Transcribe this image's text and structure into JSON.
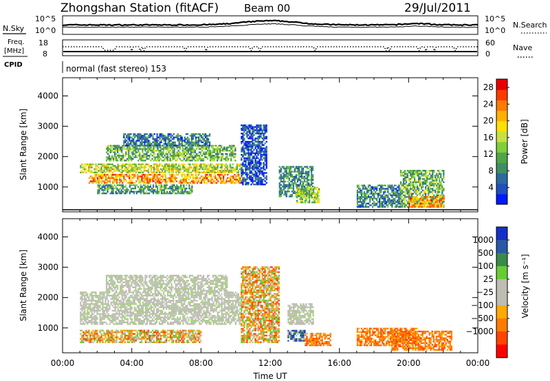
{
  "header": {
    "station": "Zhongshan Station (fitACF)",
    "beam": "Beam 00",
    "date": "29/Jul/2011"
  },
  "noise_panel": {
    "left_label": "N.Sky",
    "right_label": "N.Search",
    "left_ticks": [
      "10^5",
      "10^0"
    ],
    "right_ticks": [
      "10^5",
      "10^0"
    ]
  },
  "freq_panel": {
    "left_label_1": "Freq.",
    "left_label_2": "[MHz]",
    "right_label": "Nave",
    "left_ticks": [
      "18",
      "8"
    ],
    "right_ticks": [
      "60",
      "0"
    ],
    "cpid_label": "CPID",
    "cpid_text": "normal (fast stereo) 153"
  },
  "chart_data": [
    {
      "type": "heatmap",
      "name": "power",
      "ylabel": "Slant Range [km]",
      "xlabel": "",
      "xlim": [
        0,
        24
      ],
      "ylim": [
        180,
        4600
      ],
      "y_ticks": [
        1000,
        2000,
        3000,
        4000
      ],
      "colorbar": {
        "label": "Power [dB]",
        "ticks": [
          "4",
          "8",
          "12",
          "16",
          "20",
          "24",
          "28"
        ],
        "tick_values": [
          4,
          8,
          12,
          16,
          20,
          24,
          28
        ],
        "range": [
          0,
          30
        ],
        "colors": [
          "#0018ff",
          "#1f4fbf",
          "#2b6aa0",
          "#3f8f63",
          "#52a44a",
          "#7fcf3a",
          "#c8e040",
          "#ffe000",
          "#ffb000",
          "#ff7a00",
          "#ff3a00",
          "#e80000"
        ]
      },
      "regions": [
        {
          "t": [
            1.5,
            10.3
          ],
          "r": [
            1050,
            1350
          ],
          "v": 22
        },
        {
          "t": [
            1.0,
            10.3
          ],
          "r": [
            1400,
            1700
          ],
          "v": 16
        },
        {
          "t": [
            2.5,
            10.0
          ],
          "r": [
            1800,
            2300
          ],
          "v": 12
        },
        {
          "t": [
            3.5,
            8.5
          ],
          "r": [
            2300,
            2700
          ],
          "v": 7
        },
        {
          "t": [
            2.0,
            7.5
          ],
          "r": [
            700,
            1000
          ],
          "v": 10
        },
        {
          "t": [
            12.5,
            14.5
          ],
          "r": [
            600,
            1600
          ],
          "v": 9
        },
        {
          "t": [
            13.5,
            14.8
          ],
          "r": [
            400,
            900
          ],
          "v": 14
        },
        {
          "t": [
            17.0,
            19.5
          ],
          "r": [
            250,
            1000
          ],
          "v": 8
        },
        {
          "t": [
            19.5,
            22.0
          ],
          "r": [
            250,
            1500
          ],
          "v": 12
        },
        {
          "t": [
            20.0,
            22.0
          ],
          "r": [
            250,
            600
          ],
          "v": 22
        },
        {
          "t": [
            10.3,
            11.8
          ],
          "r": [
            1000,
            3000
          ],
          "v": 4
        }
      ]
    },
    {
      "type": "heatmap",
      "name": "velocity",
      "ylabel": "Slant Range [km]",
      "xlabel": "Time UT",
      "xlim": [
        0,
        24
      ],
      "ylim": [
        180,
        4600
      ],
      "y_ticks": [
        1000,
        2000,
        3000,
        4000
      ],
      "x_ticks": [
        "00:00",
        "04:00",
        "08:00",
        "12:00",
        "16:00",
        "20:00",
        "00:00"
      ],
      "x_tick_values": [
        0,
        4,
        8,
        12,
        16,
        20,
        24
      ],
      "colorbar": {
        "label": "Velocity [m s⁻¹]",
        "ticks": [
          "1000",
          "500",
          "100",
          "25",
          "−25",
          "−100",
          "−500",
          "−1000"
        ],
        "colors": [
          "#1530c8",
          "#2a58a8",
          "#3a8a4a",
          "#66cc33",
          "#bdbdb2",
          "#bdbdb2",
          "#ffaa00",
          "#ff7a00",
          "#ff4400",
          "#ff0000"
        ]
      },
      "regions": [
        {
          "t": [
            1.0,
            10.3
          ],
          "r": [
            1100,
            2200
          ],
          "v": "ground"
        },
        {
          "t": [
            2.5,
            9.5
          ],
          "r": [
            2200,
            2700
          ],
          "v": "ground"
        },
        {
          "t": [
            1.0,
            8.0
          ],
          "r": [
            500,
            900
          ],
          "v": "neg_small"
        },
        {
          "t": [
            13.0,
            14.5
          ],
          "r": [
            1100,
            1800
          ],
          "v": "ground"
        },
        {
          "t": [
            13.0,
            14.0
          ],
          "r": [
            550,
            900
          ],
          "v": "pos_large"
        },
        {
          "t": [
            14.0,
            15.5
          ],
          "r": [
            400,
            800
          ],
          "v": "neg"
        },
        {
          "t": [
            17.0,
            20.5
          ],
          "r": [
            400,
            1000
          ],
          "v": "neg"
        },
        {
          "t": [
            19.0,
            22.5
          ],
          "r": [
            250,
            900
          ],
          "v": "neg"
        },
        {
          "t": [
            10.3,
            12.5
          ],
          "r": [
            500,
            3000
          ],
          "v": "neg_small"
        }
      ]
    }
  ]
}
